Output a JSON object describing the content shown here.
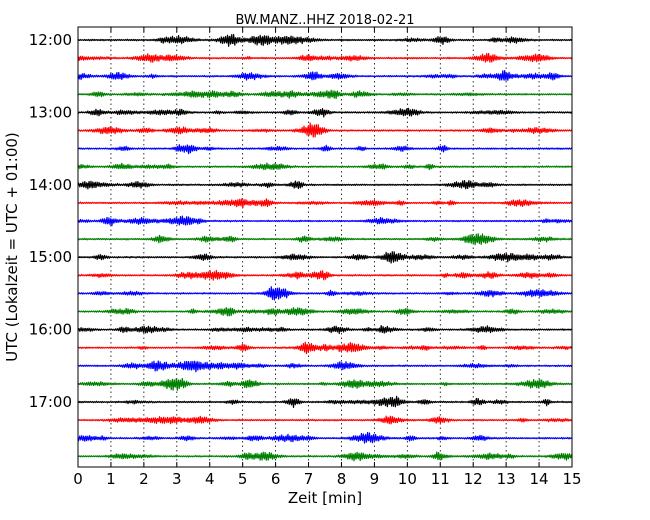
{
  "chart_data": {
    "type": "line",
    "title": "BW.MANZ..HHZ 2018-02-21",
    "xlabel": "Zeit  [min]",
    "ylabel": "UTC (Lokalzeit = UTC + 01:00)",
    "xlim": [
      0,
      15
    ],
    "x_ticks": [
      "0",
      "1",
      "2",
      "3",
      "4",
      "5",
      "6",
      "7",
      "8",
      "9",
      "10",
      "11",
      "12",
      "13",
      "14",
      "15"
    ],
    "y_hour_labels": [
      "12:00",
      "13:00",
      "14:00",
      "15:00",
      "16:00",
      "17:00"
    ],
    "grid": "vertical dotted at each minute",
    "trace_colors": [
      "#000000",
      "#ff0000",
      "#0000ff",
      "#008000"
    ],
    "rows": 24,
    "row_interval_min": 15
  }
}
